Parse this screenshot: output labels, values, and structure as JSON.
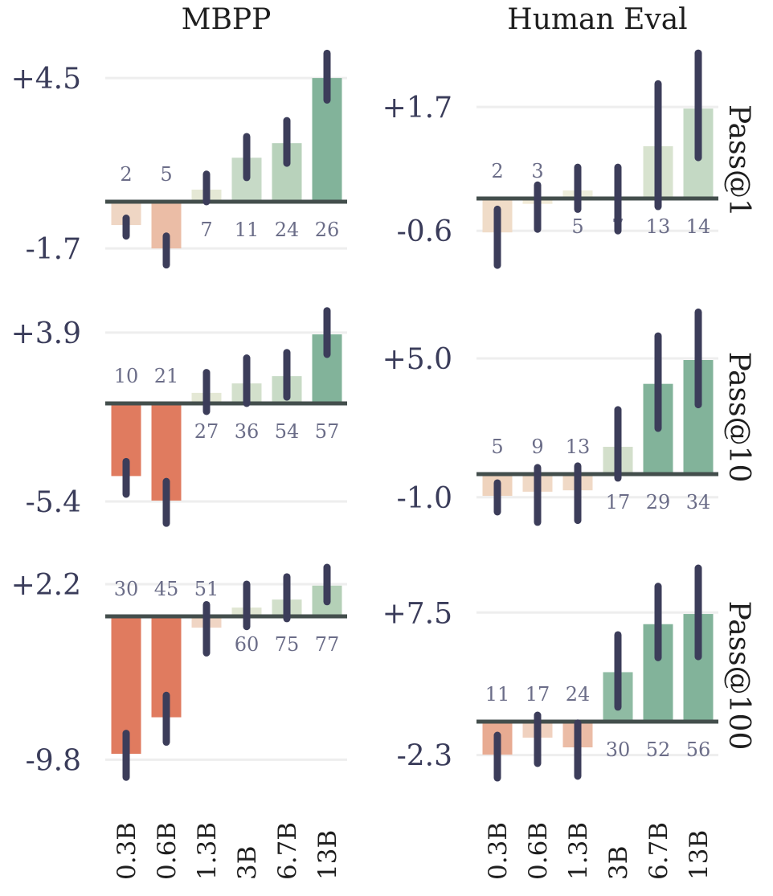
{
  "chart_data": {
    "type": "bar",
    "layout": "facet grid 3 rows x 2 columns",
    "columns": [
      "MBPP",
      "Human Eval"
    ],
    "rows": [
      "Pass@1",
      "Pass@10",
      "Pass@100"
    ],
    "categories": [
      "0.3B",
      "0.6B",
      "1.3B",
      "3B",
      "6.7B",
      "13B"
    ],
    "error_bars": true,
    "grid": "horizontal at tick values",
    "panels": [
      {
        "column": "MBPP",
        "row": "Pass@1",
        "yticks": [
          4.5,
          -1.7
        ],
        "ytick_labels": [
          "+4.5",
          "-1.7"
        ],
        "ylim": [
          -2.4,
          5.5
        ],
        "values": [
          -0.85,
          -1.7,
          0.44,
          1.6,
          2.13,
          4.5
        ],
        "err_low": [
          -1.25,
          -2.3,
          0.0,
          0.88,
          1.4,
          3.7
        ],
        "err_high": [
          -0.6,
          -1.25,
          1.0,
          2.37,
          2.95,
          5.4
        ],
        "counts": [
          "2",
          "5",
          "7",
          "11",
          "24",
          "26"
        ],
        "colors": [
          "#efd6c4",
          "#ebbda6",
          "#e5e8d5",
          "#c7dac7",
          "#b8d2bb",
          "#82b39a"
        ]
      },
      {
        "column": "Human Eval",
        "row": "Pass@1",
        "yticks": [
          1.7,
          -0.6
        ],
        "ytick_labels": [
          "+1.7",
          "-0.6"
        ],
        "ylim": [
          -1.3,
          2.8
        ],
        "values": [
          -0.63,
          -0.1,
          0.15,
          0.0,
          0.97,
          1.67
        ],
        "err_low": [
          -1.24,
          -0.57,
          -0.2,
          -0.6,
          -0.15,
          0.76
        ],
        "err_high": [
          -0.2,
          0.25,
          0.58,
          0.58,
          2.13,
          2.7
        ],
        "counts": [
          "2",
          "3",
          "5",
          "7",
          "13",
          "14"
        ],
        "colors": [
          "#f0dcc8",
          "#f2ebd8",
          "#eeeedb",
          "#eeeedb",
          "#d8e3cf",
          "#c4d9c4"
        ]
      },
      {
        "column": "MBPP",
        "row": "Pass@10",
        "yticks": [
          3.9,
          -5.4
        ],
        "ytick_labels": [
          "+3.9",
          "-5.4"
        ],
        "ylim": [
          -6.8,
          5.3
        ],
        "values": [
          -4.0,
          -5.35,
          0.58,
          1.1,
          1.5,
          3.8
        ],
        "err_low": [
          -5.0,
          -6.6,
          -0.44,
          0.0,
          0.35,
          2.7
        ],
        "err_high": [
          -3.2,
          -4.3,
          1.7,
          2.5,
          2.8,
          5.1
        ],
        "counts": [
          "10",
          "21",
          "27",
          "36",
          "54",
          "57"
        ],
        "colors": [
          "#e07b5f",
          "#e07b5f",
          "#e4e8d5",
          "#d3e0cc",
          "#c8dbc6",
          "#82b39a"
        ]
      },
      {
        "column": "Human Eval",
        "row": "Pass@10",
        "yticks": [
          5.0,
          -1.0
        ],
        "ytick_labels": [
          "+5.0",
          "-1.0"
        ],
        "ylim": [
          -2.2,
          7.2
        ],
        "values": [
          -0.94,
          -0.76,
          -0.7,
          1.18,
          3.9,
          4.93
        ],
        "err_low": [
          -1.63,
          -2.08,
          -2.0,
          -0.17,
          1.98,
          3.0
        ],
        "err_high": [
          -0.38,
          0.28,
          0.35,
          2.78,
          5.97,
          7.0
        ],
        "counts": [
          "5",
          "9",
          "13",
          "17",
          "29",
          "34"
        ],
        "colors": [
          "#efd3bd",
          "#f0d9c6",
          "#f0d9c6",
          "#d3dfcb",
          "#82b39a",
          "#82b39a"
        ]
      },
      {
        "column": "MBPP",
        "row": "Pass@100",
        "yticks": [
          2.2,
          -9.8
        ],
        "ytick_labels": [
          "+2.2",
          "-9.8"
        ],
        "ylim": [
          -11.2,
          3.5
        ],
        "values": [
          -9.4,
          -6.9,
          -0.77,
          0.6,
          1.15,
          2.1
        ],
        "err_low": [
          -11.0,
          -8.6,
          -2.5,
          -0.7,
          -0.16,
          1.0
        ],
        "err_high": [
          -8.0,
          -5.4,
          0.8,
          2.2,
          2.7,
          3.35
        ],
        "counts": [
          "30",
          "45",
          "51",
          "60",
          "75",
          "77"
        ],
        "colors": [
          "#e07b5f",
          "#e07b5f",
          "#f0d5c4",
          "#e0e6d3",
          "#d1dfca",
          "#b4d0b7"
        ]
      },
      {
        "column": "Human Eval",
        "row": "Pass@100",
        "yticks": [
          7.5,
          -2.3
        ],
        "ytick_labels": [
          "+7.5",
          "-2.3"
        ],
        "ylim": [
          -4.1,
          10.8
        ],
        "values": [
          -2.27,
          -1.1,
          -1.77,
          3.4,
          6.7,
          7.4
        ],
        "err_low": [
          -3.87,
          -2.87,
          -3.75,
          1.0,
          4.4,
          4.47
        ],
        "err_high": [
          -0.94,
          0.44,
          -0.1,
          5.97,
          9.3,
          10.55
        ],
        "counts": [
          "11",
          "17",
          "24",
          "30",
          "52",
          "56"
        ],
        "colors": [
          "#e8ab92",
          "#f0d1bf",
          "#ebbca6",
          "#8fbba3",
          "#82b39a",
          "#82b39a"
        ]
      }
    ]
  }
}
